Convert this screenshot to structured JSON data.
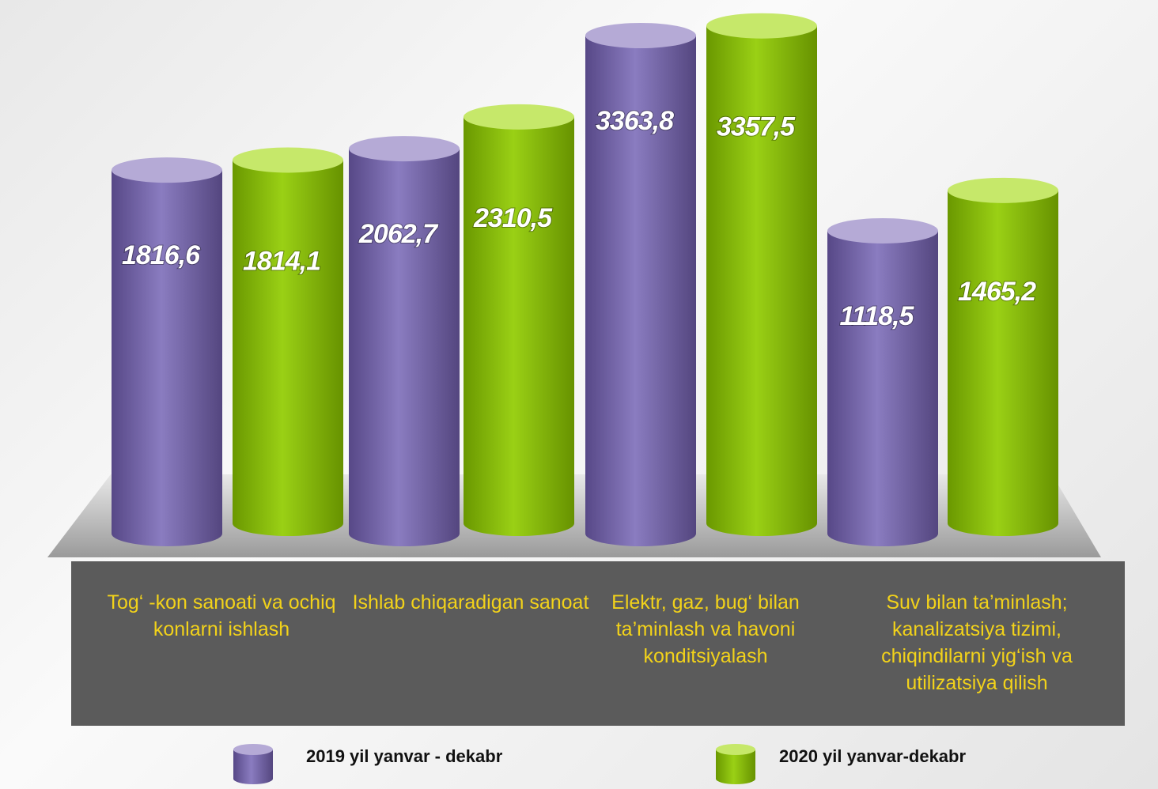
{
  "chart_data": {
    "type": "bar",
    "categories": [
      "Tog‘ -kon sanoati va ochiq konlarni ishlash",
      "Ishlab chiqaradigan sanoat",
      "Elektr, gaz, bug‘ bilan ta’minlash va havoni konditsiyalash",
      "Suv bilan ta’minlash; kanalizatsiya tizimi, chiqindilarni yig‘ish va utilizatsiya qilish"
    ],
    "series": [
      {
        "name": "2019 yil yanvar - dekabr",
        "color": "#7465a8",
        "values": [
          1816.6,
          2062.7,
          3363.8,
          1118.5
        ],
        "value_labels": [
          "1816,6",
          "2062,7",
          "3363,8",
          "1118,5"
        ]
      },
      {
        "name": "2020 yil yanvar-dekabr",
        "color": "#8cc000",
        "values": [
          1814.1,
          2310.5,
          3357.5,
          1465.2
        ],
        "value_labels": [
          "1814,1",
          "2310,5",
          "3357,5",
          "1465,2"
        ]
      }
    ]
  }
}
